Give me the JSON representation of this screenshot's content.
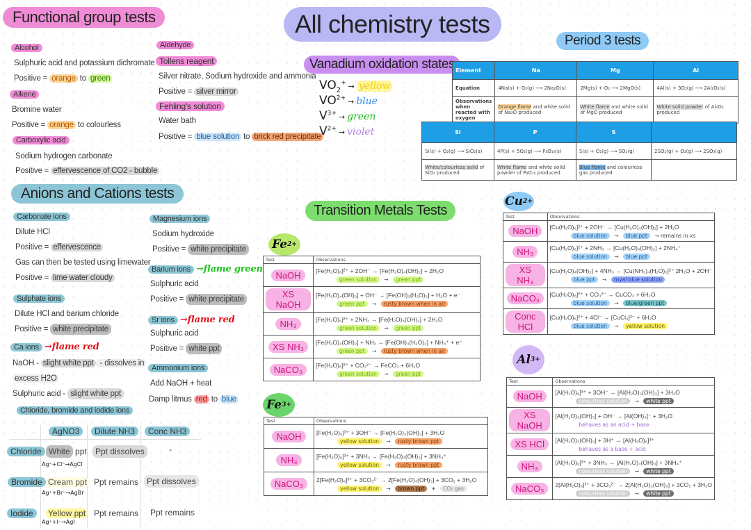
{
  "page": {
    "title": "All chemistry tests"
  },
  "functional_groups": {
    "title": "Functional group tests",
    "alcohol": {
      "label": "Alcohol",
      "reagent": "Sulphuric acid and potassium dichromate",
      "positive_prefix": "Positive = ",
      "from": "orange",
      "to_word": " to ",
      "to": "green"
    },
    "alkene": {
      "label": "Alkene",
      "reagent": "Bromine water",
      "positive_prefix": "Positive = ",
      "from": "orange",
      "rest": " to colourless"
    },
    "carboxylic": {
      "label": "Carboxylic acid",
      "reagent": "Sodium hydrogen carbonate",
      "positive_prefix": "Positive = ",
      "result": "effervescence of CO2 - bubble"
    },
    "aldehyde": {
      "label": "Aldehyde",
      "tollens": {
        "label": "Tollens reagent",
        "reagent": "Silver nitrate, Sodium hydroxide and ammonia",
        "positive_prefix": "Positive = ",
        "result": "silver mirror"
      },
      "fehlings": {
        "label": "Fehling's solution",
        "reagent": "Water bath",
        "positive_prefix": "Positive = ",
        "from": "blue solution",
        "to_word": " to ",
        "to": "brick red precipitate"
      }
    }
  },
  "vanadium": {
    "title": "Vanadium oxidation states",
    "states": [
      {
        "ion": "VO",
        "sub": "2",
        "sup": "+",
        "colour": "yellow",
        "hex": "#f5d000"
      },
      {
        "ion": "VO",
        "sub": "",
        "sup": "2+",
        "colour": "blue",
        "hex": "#2a8ee8"
      },
      {
        "ion": "V",
        "sub": "",
        "sup": "3+",
        "colour": "green",
        "hex": "#1ab81a"
      },
      {
        "ion": "V",
        "sub": "",
        "sup": "2+",
        "colour": "violet",
        "hex": "#b48ae8"
      }
    ],
    "arrow": "→"
  },
  "period3": {
    "title": "Period 3 tests",
    "table1": {
      "headers": [
        "Element",
        "Na",
        "Mg",
        "Al"
      ],
      "equation_label": "Equation",
      "equations": [
        "4Na(s) + O₂(g) ⟶ 2Na₂O(s)",
        "2Mg(s) + O₂ ⟶ 2MgO(s)",
        "4Al(s) + 3O₂(g) ⟶ 2Al₂O₃(s)"
      ],
      "obs_label": "Observations when reacted with oxygen",
      "observations": [
        {
          "hl": "Orange flame",
          "rest": " and white solid of Na₂O produced"
        },
        {
          "hl": "White flame",
          "rest": " and white solid of MgO produced"
        },
        {
          "hl": "White solid powder",
          "rest": " of Al₂O₃ produced"
        }
      ]
    },
    "table2": {
      "headers": [
        "Si",
        "P",
        "S",
        ""
      ],
      "equations": [
        "Si(s) + O₂(g) ⟶ SiO₂(s)",
        "4P(s) + 5O₂(g) ⟶ P₄O₁₀(s)",
        "S(s) + O₂(g) ⟶ SO₂(g)",
        "2SO₂(g) + O₂(g) ⟶ 2SO₃(g)"
      ],
      "observations": [
        {
          "hl": "White/colourless solid",
          "rest": " of SiO₂ produced"
        },
        {
          "hl": "White flame",
          "rest": " and white solid powder of P₄O₁₀ produced"
        },
        {
          "hl": "Blue flame",
          "rest": " and colourless gas produced"
        },
        {
          "hl": "",
          "rest": ""
        }
      ]
    }
  },
  "anions_cations": {
    "title": "Anions and Cations tests",
    "carbonate": {
      "label": "Carbonate ions",
      "reagent": "Dilute HCl",
      "positive_prefix": "Positive = ",
      "result": "effervescence",
      "note": "Gas can then be tested using limewater",
      "result2": "lime water cloudy"
    },
    "sulphate": {
      "label": "Sulphate ions",
      "reagent": "Dilute HCl and barium chloride",
      "positive_prefix": "Positive = ",
      "result": "white precipitate"
    },
    "calcium": {
      "label": "Ca ions",
      "flame": "→flame red",
      "naoh_prefix": "NaOH - ",
      "naoh_hl": "slight white ppt",
      "naoh_rest": " - dissolves in",
      "naoh_line2": "excess H2O",
      "acid_prefix": "Sulphuric acid - ",
      "acid_hl": "slight white ppt"
    },
    "magnesium": {
      "label": "Magnesium ions",
      "reagent": "Sodium hydroxide",
      "positive_prefix": "Positive = ",
      "result": "white precipitate"
    },
    "barium": {
      "label": "Barium ions",
      "flame": "→flame green",
      "reagent": "Sulphuric acid",
      "positive_prefix": "Positive = ",
      "result": "white precipitate"
    },
    "strontium": {
      "label": "Sr ions",
      "flame": "→flame red",
      "reagent": "Sulphuric acid",
      "positive_prefix": "Positive = ",
      "result": "white ppt"
    },
    "ammonium": {
      "label": "Ammonium ions",
      "reagent": "Add NaOH + heat",
      "litmus_prefix": "Damp litmus ",
      "from": "red",
      "to_word": " to ",
      "to": "blue"
    },
    "halides": {
      "label": "Chloride, bromide and iodide ions",
      "columns": [
        "AgNO3",
        "Dilute NH3",
        "Conc NH3"
      ],
      "rows": [
        {
          "ion": "Chloride",
          "agno3_hl": "White",
          "agno3_rest": " ppt",
          "equation": "Ag⁺+Cl⁻→AgCl",
          "dilute": "Ppt dissolves",
          "conc": "-"
        },
        {
          "ion": "Bromide",
          "agno3_hl": "Cream ppt",
          "agno3_rest": "",
          "equation": "Ag⁺+Br⁻→AgBr",
          "dilute": "Ppt remains",
          "conc": "Ppt dissolves"
        },
        {
          "ion": "Iodide",
          "agno3_hl": "Yellow ppt",
          "agno3_rest": "",
          "equation": "Ag⁺+I⁻→AgI",
          "dilute": "Ppt remains",
          "conc": "Ppt remains"
        }
      ]
    }
  },
  "transition_metals": {
    "title": "Transition Metals Tests",
    "headers": [
      "Test",
      "Observations"
    ],
    "fe2": {
      "ion": "Fe",
      "charge": "2+",
      "rows": [
        {
          "test": "NaOH",
          "eq": "[Fe(H₂O)₆]²⁺ + 2OH⁻ → [Fe(H₂O)₄(OH)₂] + 2H₂O",
          "obs": [
            {
              "t": "green solution",
              "c": "o-green"
            },
            {
              "t": " → ",
              "c": ""
            },
            {
              "t": "green ppt",
              "c": "o-green"
            }
          ]
        },
        {
          "test": "XS NaOH",
          "eq": "[Fe(H₂O)₄(OH)₂] + OH⁻ → [Fe(OH)₃(H₂O)₃] + H₂O + e⁻",
          "obs": [
            {
              "t": "green ppt",
              "c": "o-green"
            },
            {
              "t": " → ",
              "c": ""
            },
            {
              "t": "rusty brown when in air",
              "c": "o-rust"
            }
          ]
        },
        {
          "test": "NH₃",
          "eq": "[Fe(H₂O)₆]²⁺ + 2NH₃ → [Fe(H₂O)₄(OH)₂] + 2H₂O",
          "obs": [
            {
              "t": "green solution",
              "c": "o-green"
            },
            {
              "t": " → ",
              "c": ""
            },
            {
              "t": "green ppt",
              "c": "o-green"
            }
          ]
        },
        {
          "test": "XS NH₃",
          "eq": "[Fe(H₂O)₄(OH)₂] + NH₃ → [Fe(OH)₃(H₂O)₃] + NH₄⁺ + e⁻",
          "obs": [
            {
              "t": "green ppt",
              "c": "o-green"
            },
            {
              "t": " → ",
              "c": ""
            },
            {
              "t": "rusty brown when in air",
              "c": "o-rust"
            }
          ]
        },
        {
          "test": "NaCO₃",
          "eq": "[Fe(H₂O)₆]²⁺ + CO₃²⁻ → FeCO₃ + 6H₂O",
          "obs": [
            {
              "t": "green solution",
              "c": "o-green"
            },
            {
              "t": " → ",
              "c": ""
            },
            {
              "t": "green ppt",
              "c": "o-green"
            }
          ]
        }
      ]
    },
    "fe3": {
      "ion": "Fe",
      "charge": "3+",
      "rows": [
        {
          "test": "NaOH",
          "eq": "[Fe(H₂O)₆]³⁺ + 3OH⁻ → [Fe(H₂O)₃(OH)₃] + 3H₂O",
          "obs": [
            {
              "t": "yellow solution",
              "c": "o-yellow"
            },
            {
              "t": " → ",
              "c": ""
            },
            {
              "t": "rusty brown ppt",
              "c": "o-rust"
            }
          ]
        },
        {
          "test": "NH₃",
          "eq": "[Fe(H₂O)₆]³⁺ + 3NH₃ → [Fe(H₂O)₃(OH)₃] + 3NH₄⁺",
          "obs": [
            {
              "t": "yellow solution",
              "c": "o-yellow"
            },
            {
              "t": " → ",
              "c": ""
            },
            {
              "t": "rusty brown ppt",
              "c": "o-rust"
            }
          ]
        },
        {
          "test": "NaCO₃",
          "eq": "2[Fe(H₂O)₆]³⁺ + 3CO₃²⁻ → 2[Fe(H₂O)₃(OH)₃] + 3CO₂ + 3H₂O",
          "obs": [
            {
              "t": "yellow solution",
              "c": "o-yellow"
            },
            {
              "t": " → ",
              "c": ""
            },
            {
              "t": "brown ppt",
              "c": "o-brown"
            },
            {
              "t": " + ",
              "c": ""
            },
            {
              "t": "CO₂ gas",
              "c": "o-lgrey"
            }
          ]
        }
      ]
    },
    "cu2": {
      "ion": "Cu",
      "charge": "2+",
      "rows": [
        {
          "test": "NaOH",
          "eq": "[Cu(H₂O)₆]²⁺ + 2OH⁻ → [Cu(H₂O)₄(OH)₂] + 2H₂O",
          "obs": [
            {
              "t": "blue solution",
              "c": "o-blue"
            },
            {
              "t": " → ",
              "c": ""
            },
            {
              "t": "blue ppt",
              "c": "o-blue"
            },
            {
              "t": " → remains in xs",
              "c": ""
            }
          ]
        },
        {
          "test": "NH₃",
          "eq": "[Cu(H₂O)₆]²⁺ + 2NH₃ → [Cu(H₂O)₄(OH)₂] + 2NH₄⁺",
          "obs": [
            {
              "t": "blue solution",
              "c": "o-blue"
            },
            {
              "t": " → ",
              "c": ""
            },
            {
              "t": "blue ppt",
              "c": "o-blue"
            }
          ]
        },
        {
          "test": "XS NH₃",
          "eq": "[Cu(H₂O)₄(OH)₂] + 4NH₃ → [Cu(NH₃)₄(H₂O)₂]²⁺ 2H₂O + 2OH⁻",
          "obs": [
            {
              "t": "blue ppt",
              "c": "o-blue"
            },
            {
              "t": " → ",
              "c": ""
            },
            {
              "t": "royal blue solution",
              "c": "o-royal"
            }
          ]
        },
        {
          "test": "NaCO₃",
          "eq": "[Cu(H₂O)₆]²⁺ + CO₃²⁻ → CuCO₃ + 6H₂O",
          "obs": [
            {
              "t": "blue solution",
              "c": "o-blue"
            },
            {
              "t": " → ",
              "c": ""
            },
            {
              "t": "blue/green ppt",
              "c": "o-teal"
            }
          ]
        },
        {
          "test": "Conc HCl",
          "eq": "[Cu(H₂O)₆]²⁺ + 4Cl⁻ → [CuCl₄]²⁻ + 6H₂O",
          "obs": [
            {
              "t": "blue solution",
              "c": "o-blue"
            },
            {
              "t": " → ",
              "c": ""
            },
            {
              "t": "yellow solution",
              "c": "o-yellow"
            }
          ]
        }
      ]
    },
    "al3": {
      "ion": "Al",
      "charge": "3+",
      "rows": [
        {
          "test": "NaOH",
          "eq": "[Al(H₂O)₆]³⁺ + 3OH⁻ → [Al(H₂O)₃(OH)₃] + 3H₂O",
          "obs": [
            {
              "t": "colourless solution",
              "c": "o-grey"
            },
            {
              "t": " → ",
              "c": ""
            },
            {
              "t": "white ppt",
              "c": "o-dgrey"
            }
          ]
        },
        {
          "test": "XS NaOH",
          "eq": "[Al(H₂O)₃(OH)₃] + OH⁻ → [Al(OH)₄]⁻ + 3H₂O",
          "obs": [
            {
              "t": "behaves as an acid + base",
              "c": "o-purple"
            }
          ]
        },
        {
          "test": "XS HCl",
          "eq": "[Al(H₂O)₃(OH)₃] + 3H⁺ → [Al(H₂O)₆]³⁺",
          "obs": [
            {
              "t": "behaves as a base + acid",
              "c": "o-purple"
            }
          ]
        },
        {
          "test": "NH₃",
          "eq": "[Al(H₂O)₆]³⁺ + 3NH₃ → [Al(H₂O)₃(OH)₃] + 3NH₄⁺",
          "obs": [
            {
              "t": "colourless solution",
              "c": "o-grey"
            },
            {
              "t": " → ",
              "c": ""
            },
            {
              "t": "white ppt",
              "c": "o-dgrey"
            }
          ]
        },
        {
          "test": "NaCO₃",
          "eq": "2[Al(H₂O)₆]³⁺ + 3CO₃²⁻ → 2[Al(H₂O)₃(OH)₃] + 3CO₂ + 3H₂O",
          "obs": [
            {
              "t": "colourless solution",
              "c": "o-grey"
            },
            {
              "t": " → ",
              "c": ""
            },
            {
              "t": "white ppt",
              "c": "o-dgrey"
            }
          ]
        }
      ]
    }
  },
  "colors": {
    "pink": "#f08bd6",
    "lavender": "#b9b8f5",
    "purple": "#c98ef0",
    "sky": "#8ecaf5",
    "teal": "#8cc6d6",
    "green": "#7ddc6e",
    "period_header": "#1e9ee5"
  }
}
